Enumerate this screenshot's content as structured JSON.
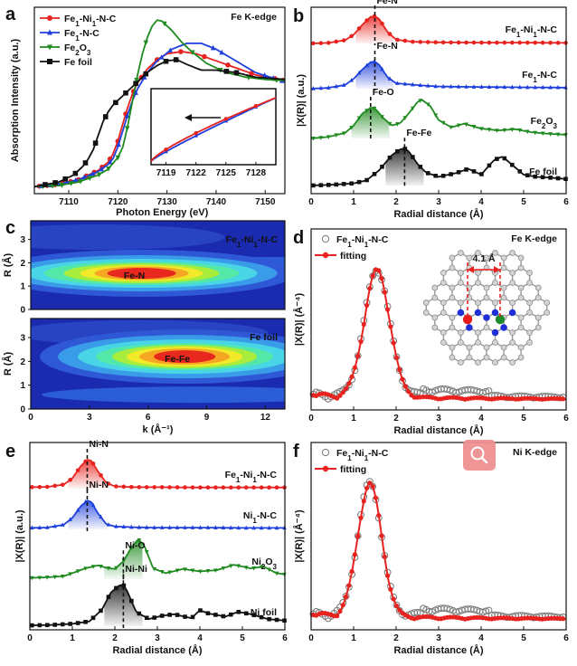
{
  "chart_data": [
    {
      "panel": "a",
      "type": "line",
      "edge_label": "Fe K-edge",
      "xlabel": "Photon Energy (eV)",
      "ylabel": "Absorption Intensity (a.u.)",
      "xlim": [
        7103,
        7154
      ],
      "ylim": [
        0,
        1.6
      ],
      "xticks": [
        7110,
        7120,
        7130,
        7140,
        7150
      ],
      "series": [
        {
          "name": "Fe1-Ni1-N-C",
          "legend": [
            "Fe",
            "1",
            "-Ni",
            "1",
            "-N-C"
          ],
          "color": "#e8231f",
          "marker": "circle",
          "x": [
            7103,
            7108,
            7112,
            7116,
            7118,
            7119,
            7120,
            7121,
            7122,
            7123,
            7124,
            7126,
            7128,
            7130,
            7133,
            7136,
            7140,
            7144,
            7148,
            7154
          ],
          "y": [
            0.06,
            0.08,
            0.12,
            0.2,
            0.27,
            0.34,
            0.45,
            0.6,
            0.74,
            0.86,
            0.95,
            1.07,
            1.15,
            1.2,
            1.22,
            1.2,
            1.14,
            1.08,
            1.02,
            0.97
          ]
        },
        {
          "name": "Fe1-N-C",
          "legend": [
            "Fe",
            "1",
            "-N-C"
          ],
          "color": "#1f3fdc",
          "marker": "triangle-up",
          "x": [
            7103,
            7108,
            7112,
            7116,
            7118,
            7119,
            7120,
            7121,
            7122,
            7123,
            7124,
            7126,
            7128,
            7131,
            7134,
            7137,
            7140,
            7144,
            7148,
            7154
          ],
          "y": [
            0.06,
            0.08,
            0.12,
            0.19,
            0.25,
            0.3,
            0.4,
            0.54,
            0.68,
            0.8,
            0.9,
            1.04,
            1.14,
            1.24,
            1.29,
            1.29,
            1.24,
            1.14,
            1.04,
            0.96
          ]
        },
        {
          "name": "Fe2O3",
          "legend": [
            "Fe",
            "2",
            "O",
            "3",
            ""
          ],
          "color": "#1f8a1f",
          "marker": "triangle-down",
          "x": [
            7103,
            7108,
            7112,
            7116,
            7118,
            7120,
            7121,
            7122,
            7123,
            7124,
            7125,
            7126,
            7127,
            7128,
            7129,
            7131,
            7133,
            7135,
            7138,
            7142,
            7146,
            7150,
            7154
          ],
          "y": [
            0.06,
            0.07,
            0.1,
            0.16,
            0.21,
            0.31,
            0.4,
            0.58,
            0.8,
            1.02,
            1.2,
            1.34,
            1.44,
            1.49,
            1.48,
            1.4,
            1.3,
            1.22,
            1.12,
            1.04,
            1.0,
            0.98,
            0.97
          ]
        },
        {
          "name": "Fe foil",
          "legend": [
            "Fe foil"
          ],
          "color": "#111111",
          "marker": "square",
          "x": [
            7103,
            7108,
            7111,
            7113,
            7114,
            7115,
            7116,
            7117,
            7118,
            7119,
            7120,
            7121,
            7122,
            7124,
            7126,
            7128,
            7130,
            7132,
            7134,
            7137,
            7140,
            7144,
            7148,
            7154
          ],
          "y": [
            0.06,
            0.1,
            0.16,
            0.24,
            0.3,
            0.38,
            0.5,
            0.62,
            0.7,
            0.76,
            0.8,
            0.84,
            0.88,
            0.96,
            1.04,
            1.1,
            1.14,
            1.15,
            1.11,
            1.06,
            1.06,
            1.04,
            1.0,
            0.98
          ]
        }
      ],
      "inset": {
        "xlim": [
          7117.5,
          7130
        ],
        "xticks": [
          7119,
          7122,
          7125,
          7128
        ],
        "arrow": "left"
      }
    },
    {
      "panel": "b",
      "type": "line",
      "xlabel": "Radial distance (Å)",
      "ylabel": "|X(R)| (a.u.)",
      "xlim": [
        0,
        6
      ],
      "xticks": [
        0,
        1,
        2,
        3,
        4,
        5,
        6
      ],
      "series": [
        {
          "name": "Fe1-Ni1-N-C",
          "label": [
            "Fe",
            "1",
            "-Ni",
            "1",
            "-N-C"
          ],
          "peak_label": "Fe-N",
          "color": "#e8231f",
          "marker": "circle",
          "x": [
            0,
            0.4,
            0.8,
            1.0,
            1.2,
            1.4,
            1.5,
            1.6,
            1.8,
            2.0,
            2.4,
            3.0,
            4.0,
            5.0,
            6.0
          ],
          "y": [
            0,
            0.02,
            0.12,
            0.32,
            0.68,
            0.98,
            1.0,
            0.9,
            0.42,
            0.14,
            0.06,
            0.04,
            0.03,
            0.03,
            0.02
          ]
        },
        {
          "name": "Fe1-N-C",
          "label": [
            "Fe",
            "1",
            "-N-C"
          ],
          "peak_label": "Fe-N",
          "color": "#1f3fdc",
          "marker": "triangle-up",
          "x": [
            0,
            0.4,
            0.8,
            1.0,
            1.2,
            1.4,
            1.5,
            1.6,
            1.8,
            2.0,
            2.3,
            2.6,
            3.0,
            3.6,
            4.2,
            5.0,
            6.0
          ],
          "y": [
            0,
            0.03,
            0.14,
            0.36,
            0.7,
            0.98,
            1.0,
            0.88,
            0.42,
            0.2,
            0.16,
            0.12,
            0.08,
            0.07,
            0.06,
            0.05,
            0.04
          ]
        },
        {
          "name": "Fe2O3",
          "label": [
            "Fe",
            "2",
            "O",
            "3",
            ""
          ],
          "peak_label": "Fe-O",
          "color": "#1f8a1f",
          "marker": "triangle-down",
          "x": [
            0,
            0.4,
            0.8,
            1.0,
            1.2,
            1.4,
            1.5,
            1.7,
            1.9,
            2.1,
            2.3,
            2.5,
            2.6,
            2.8,
            3.0,
            3.3,
            3.6,
            4.0,
            4.4,
            4.8,
            5.2,
            5.6,
            6.0
          ],
          "y": [
            0,
            0.05,
            0.18,
            0.42,
            0.8,
            1.0,
            0.98,
            0.66,
            0.42,
            0.5,
            0.82,
            1.18,
            1.26,
            1.06,
            0.6,
            0.36,
            0.48,
            0.32,
            0.26,
            0.3,
            0.2,
            0.15,
            0.12
          ]
        },
        {
          "name": "Fe foil",
          "label": [
            "Fe foil"
          ],
          "peak_label": "Fe-Fe",
          "color": "#111111",
          "marker": "square",
          "x": [
            0,
            0.5,
            1.0,
            1.3,
            1.6,
            1.9,
            2.1,
            2.2,
            2.3,
            2.5,
            2.7,
            3.0,
            3.4,
            3.7,
            4.0,
            4.3,
            4.5,
            4.7,
            5.0,
            5.3,
            5.6,
            6.0
          ],
          "y": [
            0,
            0.02,
            0.06,
            0.14,
            0.42,
            0.84,
            1.0,
            1.02,
            0.94,
            0.6,
            0.36,
            0.24,
            0.34,
            0.46,
            0.3,
            0.7,
            0.8,
            0.6,
            0.3,
            0.24,
            0.22,
            0.18
          ]
        }
      ]
    },
    {
      "panel": "c",
      "type": "heatmap",
      "xlabel": "k (Å⁻¹)",
      "ylabel": "R (Å)",
      "xlim": [
        0,
        13
      ],
      "xticks": [
        0,
        3,
        6,
        9,
        12
      ],
      "ylim": [
        0,
        3.8
      ],
      "yticks": [
        0,
        1,
        2,
        3
      ],
      "maps": [
        {
          "name": [
            "Fe",
            "1",
            "-Ni",
            "1",
            "-N-C"
          ],
          "feature_label": "Fe-N",
          "center_k": 5.3,
          "center_r": 1.55
        },
        {
          "name": [
            "Fe foil"
          ],
          "feature_label": "Fe-Fe",
          "center_k": 7.5,
          "center_r": 2.2
        }
      ]
    },
    {
      "panel": "d",
      "type": "line",
      "edge_label": "Fe K-edge",
      "xlabel": "Radial distance (Å)",
      "ylabel": "|X(R)| (Å⁻⁴)",
      "xlim": [
        0,
        6
      ],
      "xticks": [
        0,
        1,
        2,
        3,
        4,
        5,
        6
      ],
      "legend": [
        {
          "label": [
            "Fe",
            "1",
            "-Ni",
            "1",
            "-N-C"
          ],
          "style": "open-circle"
        },
        {
          "label": [
            "fitting"
          ],
          "style": "red-line"
        }
      ],
      "distance_label": "4.1 Å",
      "peak_r": 1.55,
      "peak_width": 0.3
    },
    {
      "panel": "e",
      "type": "line",
      "xlabel": "Radial distance (Å)",
      "ylabel": "|X(R)| (a.u.)",
      "xlim": [
        0,
        6
      ],
      "xticks": [
        0,
        1,
        2,
        3,
        4,
        5,
        6
      ],
      "series": [
        {
          "name": "Fe1-Ni1-N-C",
          "label": [
            "Fe",
            "1",
            "-Ni",
            "1",
            "-N-C"
          ],
          "peak_label": "Ni-N",
          "color": "#e8231f",
          "marker": "circle",
          "x": [
            0,
            0.4,
            0.8,
            1.0,
            1.2,
            1.35,
            1.45,
            1.6,
            1.8,
            2.0,
            2.5,
            3.0,
            4.0,
            5.0,
            6.0
          ],
          "y": [
            0.05,
            0.06,
            0.14,
            0.36,
            0.78,
            1.0,
            0.96,
            0.6,
            0.2,
            0.08,
            0.05,
            0.05,
            0.04,
            0.04,
            0.04
          ]
        },
        {
          "name": "Ni1-N-C",
          "label": [
            "Ni",
            "1",
            "-N-C"
          ],
          "peak_label": "Ni-N",
          "color": "#1f3fdc",
          "marker": "triangle-up",
          "x": [
            0,
            0.4,
            0.8,
            1.0,
            1.2,
            1.35,
            1.45,
            1.6,
            1.8,
            2.0,
            2.5,
            3.0,
            3.6,
            4.2,
            5.0,
            6.0
          ],
          "y": [
            0.05,
            0.06,
            0.16,
            0.4,
            0.8,
            1.0,
            0.94,
            0.56,
            0.18,
            0.1,
            0.07,
            0.06,
            0.06,
            0.06,
            0.05,
            0.05
          ]
        },
        {
          "name": "Ni2O3",
          "label": [
            "Ni",
            "2",
            "O",
            "3",
            ""
          ],
          "peak_label": "Ni-O",
          "color": "#1f8a1f",
          "marker": "triangle-down",
          "x": [
            0,
            0.4,
            0.8,
            1.0,
            1.3,
            1.6,
            1.8,
            2.0,
            2.2,
            2.4,
            2.55,
            2.7,
            2.9,
            3.2,
            3.6,
            4.0,
            4.4,
            4.8,
            5.2,
            5.5,
            5.8,
            6.0
          ],
          "y": [
            0.04,
            0.06,
            0.1,
            0.2,
            0.36,
            0.46,
            0.38,
            0.34,
            0.6,
            1.08,
            1.34,
            1.1,
            0.36,
            0.2,
            0.34,
            0.26,
            0.3,
            0.48,
            0.36,
            0.42,
            0.2,
            0.16
          ]
        },
        {
          "name": "Ni foil",
          "label": [
            "Ni foil"
          ],
          "peak_label": "Ni-Ni",
          "color": "#111111",
          "marker": "square",
          "x": [
            0,
            0.5,
            1.0,
            1.4,
            1.7,
            1.9,
            2.1,
            2.2,
            2.3,
            2.5,
            2.8,
            3.1,
            3.4,
            3.8,
            4.0,
            4.2,
            4.6,
            4.9,
            5.2,
            5.6,
            6.0
          ],
          "y": [
            0.02,
            0.03,
            0.06,
            0.12,
            0.42,
            0.84,
            1.02,
            1.04,
            0.86,
            0.36,
            0.18,
            0.26,
            0.3,
            0.2,
            0.4,
            0.32,
            0.24,
            0.36,
            0.3,
            0.18,
            0.14
          ]
        }
      ]
    },
    {
      "panel": "f",
      "type": "line",
      "edge_label": "Ni K-edge",
      "xlabel": "Radial distance (Å)",
      "ylabel": "|X(R)| (Å⁻⁴)",
      "xlim": [
        0,
        6
      ],
      "xticks": [
        0,
        1,
        2,
        3,
        4,
        5,
        6
      ],
      "legend": [
        {
          "label": [
            "Fe",
            "1",
            "-Ni",
            "1",
            "-N-C"
          ],
          "style": "open-circle"
        },
        {
          "label": [
            "fitting"
          ],
          "style": "red-line"
        }
      ],
      "peak_r": 1.38,
      "peak_width": 0.28
    }
  ]
}
